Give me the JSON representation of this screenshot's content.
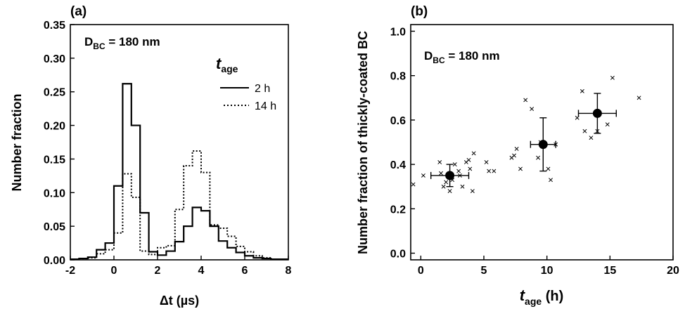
{
  "chart_data": [
    {
      "panel": "(a)",
      "type": "line",
      "style": "step-histogram",
      "xlabel": "Δt (µs)",
      "ylabel": "Number fraction",
      "xlim": [
        -2,
        8
      ],
      "ylim": [
        0,
        0.35
      ],
      "xticks": [
        "-2",
        "0",
        "2",
        "4",
        "6",
        "8"
      ],
      "yticks": [
        "0.00",
        "0.05",
        "0.10",
        "0.15",
        "0.20",
        "0.25",
        "0.30",
        "0.35"
      ],
      "annotation_main": "D",
      "annotation_sub": "BC",
      "annotation_tail": " = 180 nm",
      "legend_title_main": "t",
      "legend_title_sub": "age",
      "legend_position": "top-right",
      "bin_edges": [
        -2.0,
        -1.6,
        -1.2,
        -0.8,
        -0.4,
        0.0,
        0.4,
        0.8,
        1.2,
        1.6,
        2.0,
        2.4,
        2.8,
        3.2,
        3.6,
        4.0,
        4.4,
        4.8,
        5.2,
        5.6,
        6.0,
        6.4,
        6.8,
        7.2,
        7.6,
        8.0
      ],
      "series": [
        {
          "name": "2 h",
          "line_style": "solid",
          "values": [
            0.001,
            0.002,
            0.004,
            0.015,
            0.025,
            0.11,
            0.262,
            0.2,
            0.07,
            0.012,
            0.007,
            0.013,
            0.027,
            0.05,
            0.078,
            0.073,
            0.05,
            0.028,
            0.018,
            0.011,
            0.006,
            0.003,
            0.002,
            0.001,
            0.001
          ]
        },
        {
          "name": "14 h",
          "line_style": "dotted",
          "values": [
            0.001,
            0.002,
            0.003,
            0.009,
            0.015,
            0.04,
            0.128,
            0.093,
            0.013,
            0.008,
            0.018,
            0.021,
            0.075,
            0.14,
            0.162,
            0.13,
            0.052,
            0.047,
            0.035,
            0.02,
            0.012,
            0.006,
            0.003,
            0.001,
            0.001
          ]
        }
      ]
    },
    {
      "panel": "(b)",
      "type": "scatter",
      "xlabel_main": "t",
      "xlabel_sub": "age",
      "xlabel_tail": " (h)",
      "ylabel": "Number fraction of  thickly-coated BC",
      "xlim": [
        -0.8,
        20
      ],
      "ylim": [
        -0.03,
        1.03
      ],
      "xticks": [
        "0",
        "5",
        "10",
        "15",
        "20"
      ],
      "yticks": [
        "0.0",
        "0.2",
        "0.4",
        "0.6",
        "0.8",
        "1.0"
      ],
      "annotation_main": "D",
      "annotation_sub": "BC",
      "annotation_tail": " = 180 nm",
      "series": [
        {
          "marker": "x",
          "x": [
            -0.6,
            0.2,
            1.5,
            1.6,
            1.8,
            2.0,
            2.3,
            2.5,
            2.7,
            3.0,
            3.1,
            3.3,
            3.6,
            3.8,
            3.9,
            4.1,
            4.2,
            5.2,
            5.4,
            5.8,
            7.2,
            7.4,
            7.6,
            7.9,
            8.3,
            8.8,
            9.3,
            9.5,
            10.1,
            10.3,
            10.7,
            12.4,
            12.8,
            13.0,
            13.5,
            14.0,
            14.8,
            15.2,
            17.3
          ],
          "y": [
            0.31,
            0.35,
            0.41,
            0.36,
            0.3,
            0.32,
            0.28,
            0.33,
            0.4,
            0.37,
            0.35,
            0.3,
            0.41,
            0.42,
            0.38,
            0.28,
            0.45,
            0.41,
            0.37,
            0.37,
            0.43,
            0.44,
            0.47,
            0.38,
            0.69,
            0.65,
            0.43,
            0.5,
            0.38,
            0.33,
            0.49,
            0.61,
            0.73,
            0.55,
            0.52,
            0.55,
            0.58,
            0.79,
            0.7
          ]
        },
        {
          "marker": "filled-circle",
          "x": [
            2.3,
            9.7,
            14.0
          ],
          "y": [
            0.35,
            0.49,
            0.63
          ],
          "xerr": [
            1.5,
            1.0,
            1.5
          ],
          "yerr": [
            0.05,
            0.12,
            0.09
          ]
        }
      ]
    }
  ]
}
